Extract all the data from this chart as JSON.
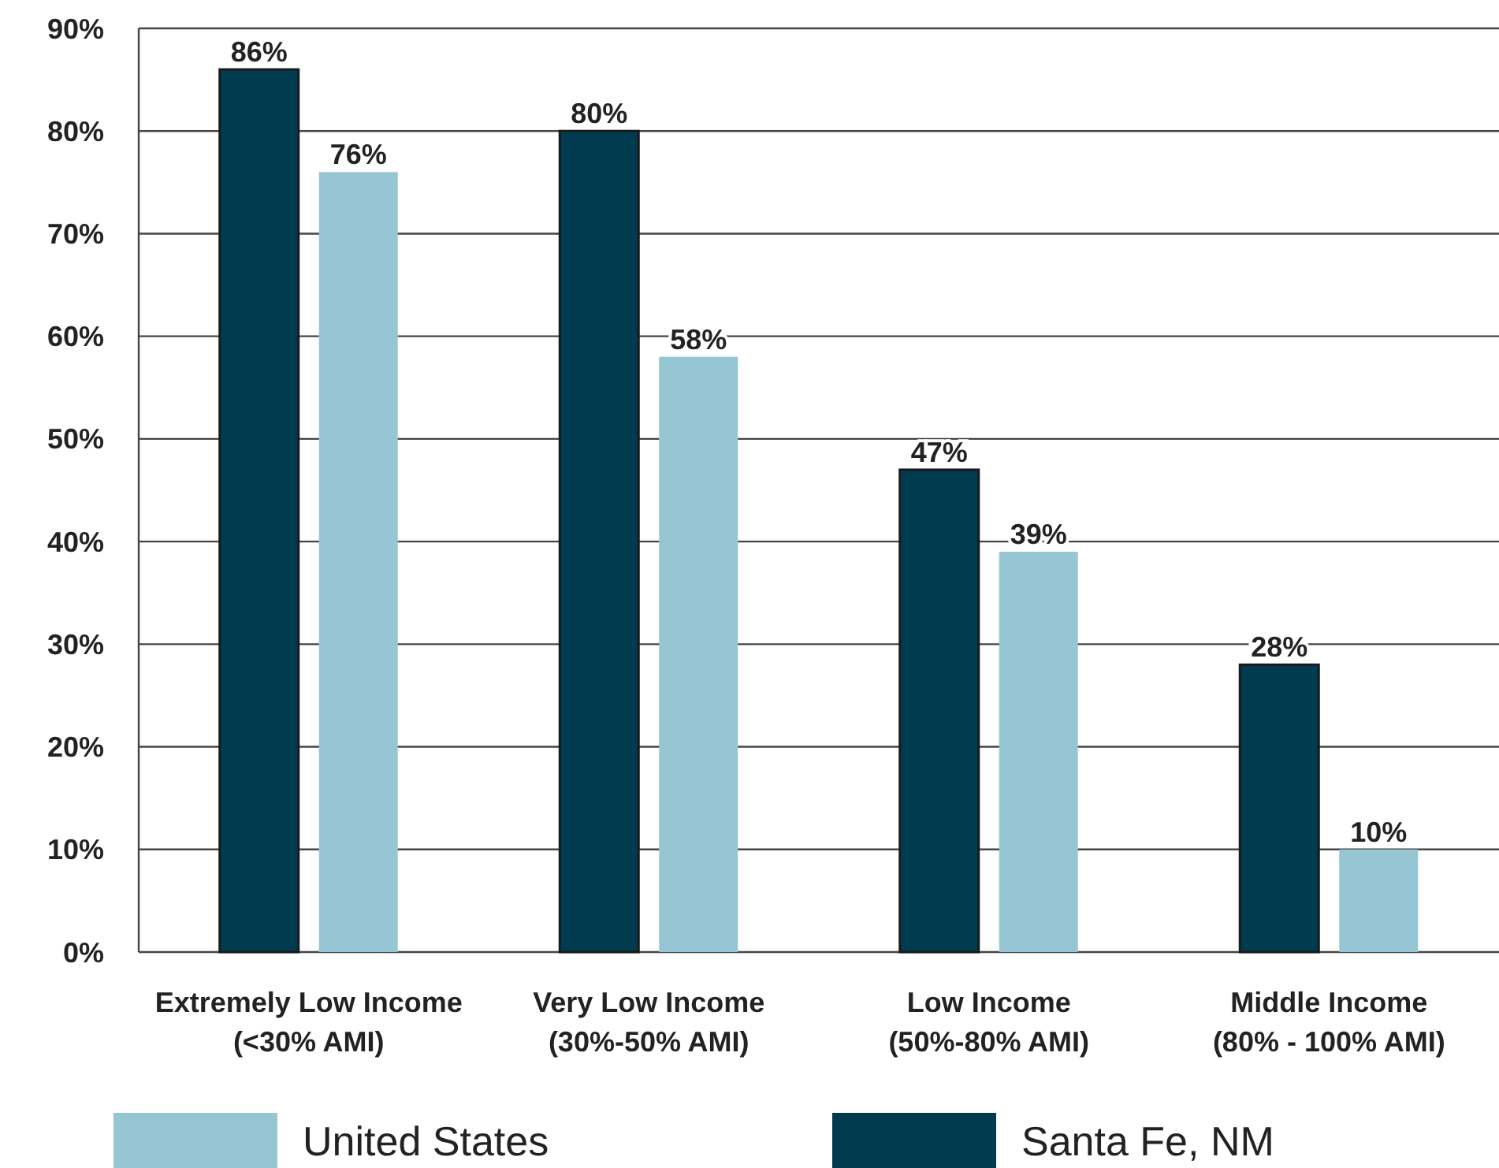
{
  "chart_data": {
    "type": "bar",
    "categories": [
      "Extremely Low Income\n(<30% AMI)",
      "Very Low Income\n(30%-50% AMI)",
      "Low Income\n(50%-80% AMI)",
      "Middle Income\n(80% - 100% AMI)"
    ],
    "series": [
      {
        "name": "Santa Fe, NM",
        "color": "#003b4f",
        "values": [
          86,
          80,
          47,
          28
        ]
      },
      {
        "name": "United States",
        "color": "#96c5d4",
        "values": [
          76,
          58,
          39,
          10
        ]
      }
    ],
    "ylim": [
      0,
      90
    ],
    "yticks": [
      {
        "value": 0,
        "label": "0%"
      },
      {
        "value": 10,
        "label": "10%"
      },
      {
        "value": 20,
        "label": "20%"
      },
      {
        "value": 30,
        "label": "30%"
      },
      {
        "value": 40,
        "label": "40%"
      },
      {
        "value": 50,
        "label": "50%"
      },
      {
        "value": 60,
        "label": "60%"
      },
      {
        "value": 70,
        "label": "70%"
      },
      {
        "value": 80,
        "label": "80%"
      },
      {
        "value": 90,
        "label": "90%"
      }
    ],
    "value_labels": [
      [
        "86%",
        "80%",
        "47%",
        "28%"
      ],
      [
        "76%",
        "58%",
        "39%",
        "10%"
      ]
    ],
    "grid": "y",
    "legend": "bottom"
  }
}
